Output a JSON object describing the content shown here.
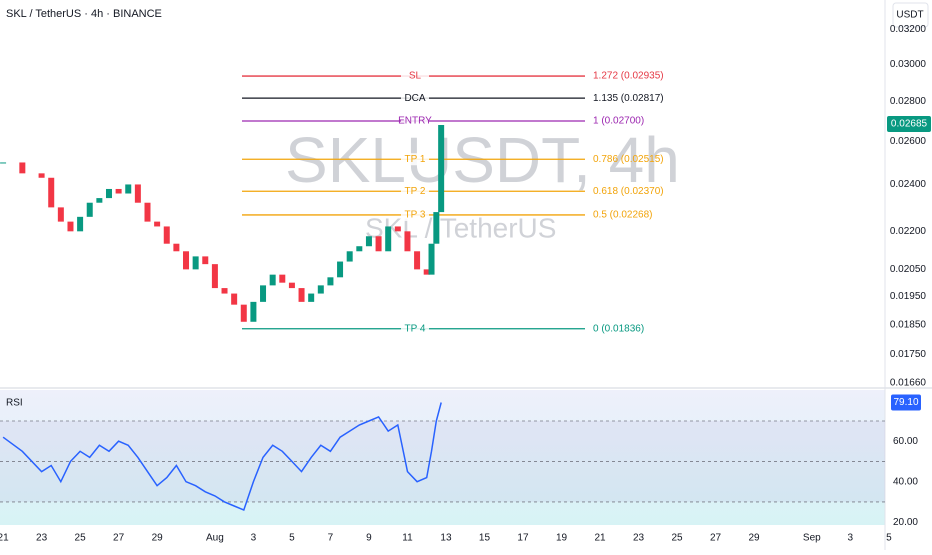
{
  "chart_data": [
    {
      "type": "candlestick",
      "title": "SKL / TetherUS · 4h · BINANCE",
      "watermark": "SKLUSDT, 4h",
      "watermark_sub": "SKL / TetherUS",
      "currency": "USDT",
      "log_scale": true,
      "x": [
        0,
        1,
        2,
        2.5,
        3,
        3.5,
        4,
        4.5,
        5,
        5.5,
        6,
        6.5,
        7,
        7.5,
        8,
        8.5,
        9,
        9.5,
        10,
        10.5,
        11,
        11.5,
        12,
        12.5,
        13,
        13.5,
        14,
        14.5,
        15,
        15.5,
        16,
        16.5,
        17,
        17.5,
        18,
        18.5,
        19,
        19.5,
        20,
        20.5,
        21,
        21.5,
        22,
        22.25,
        22.5,
        22.75
      ],
      "values": [
        0.025,
        0.0245,
        0.0243,
        0.023,
        0.0224,
        0.022,
        0.0226,
        0.0232,
        0.0234,
        0.0238,
        0.0236,
        0.024,
        0.0232,
        0.0224,
        0.0222,
        0.0215,
        0.0212,
        0.0205,
        0.021,
        0.0207,
        0.0198,
        0.0196,
        0.0192,
        0.0186,
        0.0193,
        0.0199,
        0.0203,
        0.02,
        0.0198,
        0.0193,
        0.0196,
        0.0199,
        0.0202,
        0.0208,
        0.0212,
        0.0214,
        0.0218,
        0.0212,
        0.0222,
        0.022,
        0.0212,
        0.0205,
        0.0203,
        0.0215,
        0.0228,
        0.0268
      ],
      "up_color": "#089981",
      "down_color": "#f23645",
      "xlim": [
        -0.16,
        45.8
      ],
      "xticks": [
        {
          "value": 0,
          "label": "21"
        },
        {
          "value": 2,
          "label": "23"
        },
        {
          "value": 4,
          "label": "25"
        },
        {
          "value": 6,
          "label": "27"
        },
        {
          "value": 8,
          "label": "29"
        },
        {
          "value": 11,
          "label": "Aug"
        },
        {
          "value": 13,
          "label": "3"
        },
        {
          "value": 15,
          "label": "5"
        },
        {
          "value": 17,
          "label": "7"
        },
        {
          "value": 19,
          "label": "9"
        },
        {
          "value": 21,
          "label": "11"
        },
        {
          "value": 23,
          "label": "13"
        },
        {
          "value": 25,
          "label": "15"
        },
        {
          "value": 27,
          "label": "17"
        },
        {
          "value": 29,
          "label": "19"
        },
        {
          "value": 31,
          "label": "21"
        },
        {
          "value": 33,
          "label": "23"
        },
        {
          "value": 35,
          "label": "25"
        },
        {
          "value": 37,
          "label": "27"
        },
        {
          "value": 39,
          "label": "29"
        },
        {
          "value": 42,
          "label": "Sep"
        },
        {
          "value": 44,
          "label": "3"
        },
        {
          "value": 46,
          "label": "5"
        }
      ],
      "ylim": [
        0.01654,
        0.0338
      ],
      "yticks": [
        {
          "value": 0.032,
          "label": "0.03200"
        },
        {
          "value": 0.03,
          "label": "0.03000"
        },
        {
          "value": 0.028,
          "label": "0.02800"
        },
        {
          "value": 0.026,
          "label": "0.02600"
        },
        {
          "value": 0.024,
          "label": "0.02400"
        },
        {
          "value": 0.022,
          "label": "0.02200"
        },
        {
          "value": 0.0205,
          "label": "0.02050"
        },
        {
          "value": 0.0195,
          "label": "0.01950"
        },
        {
          "value": 0.0185,
          "label": "0.01850"
        },
        {
          "value": 0.0175,
          "label": "0.01750"
        },
        {
          "value": 0.0166,
          "label": "0.01660"
        }
      ],
      "last_price": {
        "value": 0.02685,
        "label": "0.02685"
      },
      "levels": [
        {
          "name": "SL",
          "label": "1.272 (0.02935)",
          "value": 0.02935,
          "color": "#e53945"
        },
        {
          "name": "DCA",
          "label": "1.135 (0.02817)",
          "value": 0.02817,
          "color": "#131722"
        },
        {
          "name": "ENTRY",
          "label": "1 (0.02700)",
          "value": 0.027,
          "color": "#9c27b0"
        },
        {
          "name": "TP 1",
          "label": "0.786 (0.02515)",
          "value": 0.02515,
          "color": "#f2a40a"
        },
        {
          "name": "TP 2",
          "label": "0.618 (0.02370)",
          "value": 0.0237,
          "color": "#f2a40a"
        },
        {
          "name": "TP 3",
          "label": "0.5 (0.02268)",
          "value": 0.02268,
          "color": "#f2a40a"
        },
        {
          "name": "TP 4",
          "label": "0 (0.01836)",
          "value": 0.01836,
          "color": "#089981"
        }
      ]
    },
    {
      "type": "line",
      "title": "RSI",
      "color": "#2962ff",
      "x": [
        0,
        1,
        2,
        2.5,
        3,
        3.5,
        4,
        4.5,
        5,
        5.5,
        6,
        6.5,
        7,
        7.5,
        8,
        8.5,
        9,
        9.5,
        10,
        10.5,
        11,
        11.5,
        12,
        12.5,
        13,
        13.5,
        14,
        14.5,
        15,
        15.5,
        16,
        16.5,
        17,
        17.5,
        18,
        18.5,
        19,
        19.5,
        20,
        20.5,
        21,
        21.5,
        22,
        22.25,
        22.5,
        22.75
      ],
      "values": [
        62,
        55,
        45,
        48,
        40,
        50,
        55,
        52,
        58,
        55,
        60,
        58,
        52,
        45,
        38,
        42,
        48,
        40,
        38,
        35,
        33,
        30,
        28,
        26,
        40,
        52,
        58,
        55,
        50,
        45,
        52,
        58,
        55,
        62,
        65,
        68,
        70,
        72,
        65,
        68,
        45,
        40,
        42,
        55,
        70,
        79.1
      ],
      "xlim": [
        -0.16,
        45.8
      ],
      "ylim": [
        18.6,
        85.3
      ],
      "yticks": [
        {
          "value": 60,
          "label": "60.00"
        },
        {
          "value": 40,
          "label": "40.00"
        },
        {
          "value": 20,
          "label": "20.00"
        }
      ],
      "levels": [
        70,
        50,
        30
      ],
      "last_value": {
        "value": 79.1,
        "label": "79.10"
      }
    }
  ]
}
